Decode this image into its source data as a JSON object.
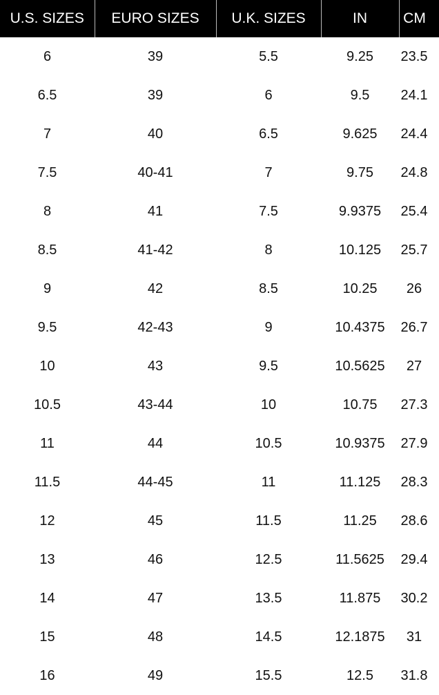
{
  "headers": [
    "U.S. SIZES",
    "EURO SIZES",
    "U.K. SIZES",
    "IN",
    "CM"
  ],
  "rows": [
    [
      "6",
      "39",
      "5.5",
      "9.25",
      "23.5"
    ],
    [
      "6.5",
      "39",
      "6",
      "9.5",
      "24.1"
    ],
    [
      "7",
      "40",
      "6.5",
      "9.625",
      "24.4"
    ],
    [
      "7.5",
      "40-41",
      "7",
      "9.75",
      "24.8"
    ],
    [
      "8",
      "41",
      "7.5",
      "9.9375",
      "25.4"
    ],
    [
      "8.5",
      "41-42",
      "8",
      "10.125",
      "25.7"
    ],
    [
      "9",
      "42",
      "8.5",
      "10.25",
      "26"
    ],
    [
      "9.5",
      "42-43",
      "9",
      "10.4375",
      "26.7"
    ],
    [
      "10",
      "43",
      "9.5",
      "10.5625",
      "27"
    ],
    [
      "10.5",
      "43-44",
      "10",
      "10.75",
      "27.3"
    ],
    [
      "11",
      "44",
      "10.5",
      "10.9375",
      "27.9"
    ],
    [
      "11.5",
      "44-45",
      "11",
      "11.125",
      "28.3"
    ],
    [
      "12",
      "45",
      "11.5",
      "11.25",
      "28.6"
    ],
    [
      "13",
      "46",
      "12.5",
      "11.5625",
      "29.4"
    ],
    [
      "14",
      "47",
      "13.5",
      "11.875",
      "30.2"
    ],
    [
      "15",
      "48",
      "14.5",
      "12.1875",
      "31"
    ],
    [
      "16",
      "49",
      "15.5",
      "12.5",
      "31.8"
    ]
  ],
  "colors": {
    "header_bg": "#000000",
    "header_text": "#ffffff"
  }
}
